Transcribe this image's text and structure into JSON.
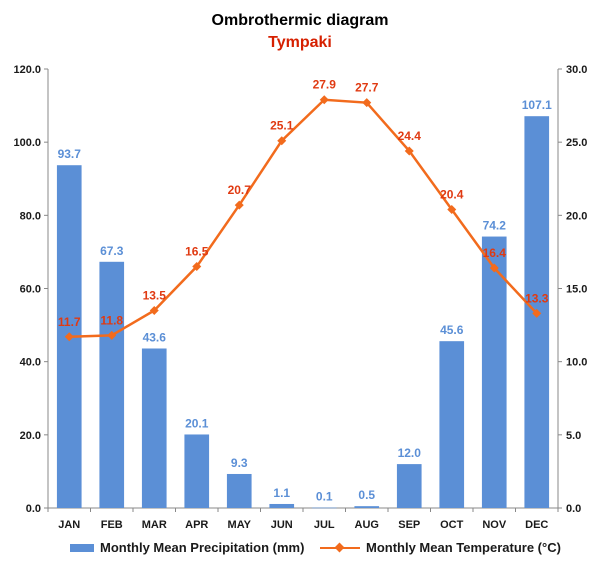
{
  "title": "Ombrothermic diagram",
  "subtitle": "Tympaki",
  "colors": {
    "precipitation": "#5b8fd6",
    "precip_label": "#5b8fd6",
    "temperature": "#f26b1d",
    "temp_label": "#e03a12",
    "subtitle": "#d62000"
  },
  "chart_data": {
    "type": "bar",
    "title": "Ombrothermic diagram",
    "subtitle": "Tympaki",
    "categories": [
      "JAN",
      "FEB",
      "MAR",
      "APR",
      "MAY",
      "JUN",
      "JUL",
      "AUG",
      "SEP",
      "OCT",
      "NOV",
      "DEC"
    ],
    "series": [
      {
        "name": "Monthly Mean Precipitation (mm)",
        "type": "bar",
        "axis": "left",
        "values": [
          93.7,
          67.3,
          43.6,
          20.1,
          9.3,
          1.1,
          0.1,
          0.5,
          12.0,
          45.6,
          74.2,
          107.1
        ]
      },
      {
        "name": "Monthly Mean Temperature (°C)",
        "type": "line",
        "axis": "right",
        "marker": "diamond",
        "values": [
          11.7,
          11.8,
          13.5,
          16.5,
          20.7,
          25.1,
          27.9,
          27.7,
          24.4,
          20.4,
          16.4,
          13.3
        ]
      }
    ],
    "y_left": {
      "min": 0,
      "max": 120,
      "step": 20,
      "tick_labels": [
        "0.0",
        "20.0",
        "40.0",
        "60.0",
        "80.0",
        "100.0",
        "120.0"
      ]
    },
    "y_right": {
      "min": 0,
      "max": 30,
      "step": 5,
      "tick_labels": [
        "0.0",
        "5.0",
        "10.0",
        "15.0",
        "20.0",
        "25.0",
        "30.0"
      ]
    },
    "grid": false,
    "legend": "bottom"
  }
}
